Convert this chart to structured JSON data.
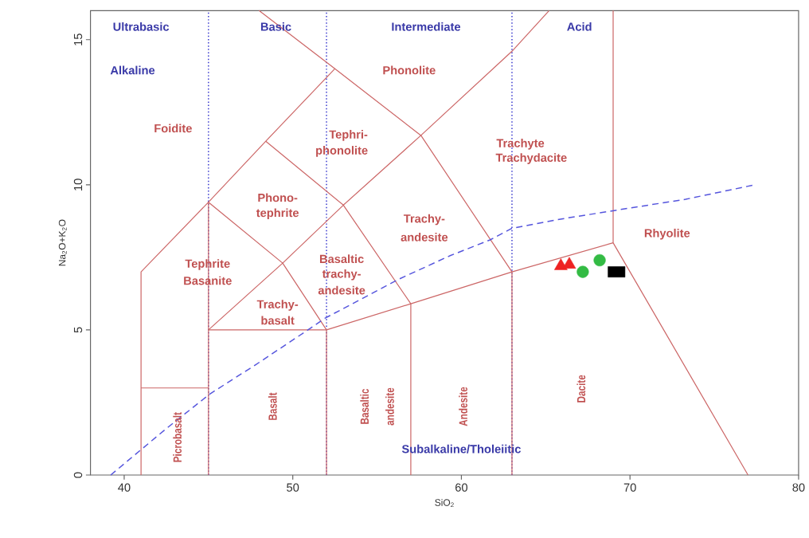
{
  "chart_data": {
    "type": "line",
    "xlabel": "SiO$_{2}$",
    "ylabel": "Na$_{2}$O+K$_{2}$O",
    "xlim": [
      38,
      80
    ],
    "ylim": [
      0,
      16
    ],
    "xticks": [
      40,
      50,
      60,
      70,
      80
    ],
    "yticks": [
      0,
      5,
      10,
      15
    ],
    "grid": false,
    "series": [
      {
        "color": "#cc6666",
        "x": [
          41,
          41,
          45,
          48.4,
          52.5
        ],
        "values": [
          0,
          7,
          9.4,
          11.5,
          14
        ]
      },
      {
        "color": "#cc6666",
        "x": [
          41,
          45
        ],
        "values": [
          3,
          3
        ]
      },
      {
        "color": "#cc6666",
        "x": [
          45,
          45
        ],
        "values": [
          0,
          9.4
        ]
      },
      {
        "color": "#cc6666",
        "x": [
          45,
          52,
          52
        ],
        "values": [
          5,
          5,
          0
        ]
      },
      {
        "color": "#cc6666",
        "x": [
          45,
          49.4,
          53,
          57.6,
          63,
          65.2
        ],
        "values": [
          5,
          7.3,
          9.3,
          11.7,
          14.6,
          16
        ]
      },
      {
        "color": "#cc6666",
        "x": [
          45,
          49.4,
          52
        ],
        "values": [
          9.4,
          7.3,
          5
        ]
      },
      {
        "color": "#cc6666",
        "x": [
          48.4,
          53,
          57,
          57
        ],
        "values": [
          11.5,
          9.3,
          5.9,
          0
        ]
      },
      {
        "color": "#cc6666",
        "x": [
          52,
          57,
          63,
          69
        ],
        "values": [
          5,
          5.9,
          7,
          8
        ]
      },
      {
        "color": "#cc6666",
        "x": [
          48,
          52.5,
          57.6,
          63,
          63
        ],
        "values": [
          16,
          14,
          11.7,
          7,
          0
        ]
      },
      {
        "color": "#cc6666",
        "x": [
          69,
          69,
          77
        ],
        "values": [
          16,
          8,
          0
        ]
      },
      {
        "color": "#5555dd",
        "line_style": "dashed",
        "x": [
          39.2,
          42.5,
          45.1,
          47.8,
          50.9,
          51.9,
          56.3,
          59.3,
          61.7,
          63,
          65.7,
          70,
          73.3,
          77.4
        ],
        "values": [
          0,
          1.6,
          2.8,
          3.8,
          5,
          5.4,
          6.75,
          7.55,
          8.1,
          8.5,
          8.8,
          9.2,
          9.5,
          10
        ]
      },
      {
        "type": "scatter",
        "marker": "triangle",
        "color": "#ee2222",
        "x": [
          65.9,
          66.4
        ],
        "values": [
          7.2,
          7.25
        ]
      },
      {
        "type": "scatter",
        "marker": "circle",
        "color": "#33bb44",
        "x": [
          67.2,
          68.2
        ],
        "values": [
          7.0,
          7.4
        ]
      },
      {
        "type": "scatter",
        "marker": "square",
        "color": "#000000",
        "x": [
          69.2
        ],
        "values": [
          7.0
        ]
      }
    ],
    "ref_lines": [
      {
        "axis": "x",
        "value": 45,
        "color": "#3333cc",
        "line_style": "dotted"
      },
      {
        "axis": "x",
        "value": 52,
        "color": "#3333cc",
        "line_style": "dotted"
      },
      {
        "axis": "x",
        "value": 63,
        "color": "#3333cc",
        "line_style": "dotted"
      }
    ],
    "annotations": [
      "Ultrabasic",
      "Basic",
      "Intermediate",
      "Acid",
      "Alkaline",
      "Subalkaline/Tholeiitic",
      "Phonolite",
      "Foidite",
      "Tephri-",
      "phonolite",
      "Trachyte",
      "Trachydacite",
      "Phono-",
      "tephrite",
      "Trachy-",
      "andesite",
      "Rhyolite",
      "Tephrite",
      "Basanite",
      "Basaltic",
      "trachy-",
      "andesite",
      "Trachy-",
      "basalt",
      "Picrobasalt",
      "Basalt",
      "Basaltic",
      "andesite",
      "Andesite",
      "Dacite"
    ]
  }
}
